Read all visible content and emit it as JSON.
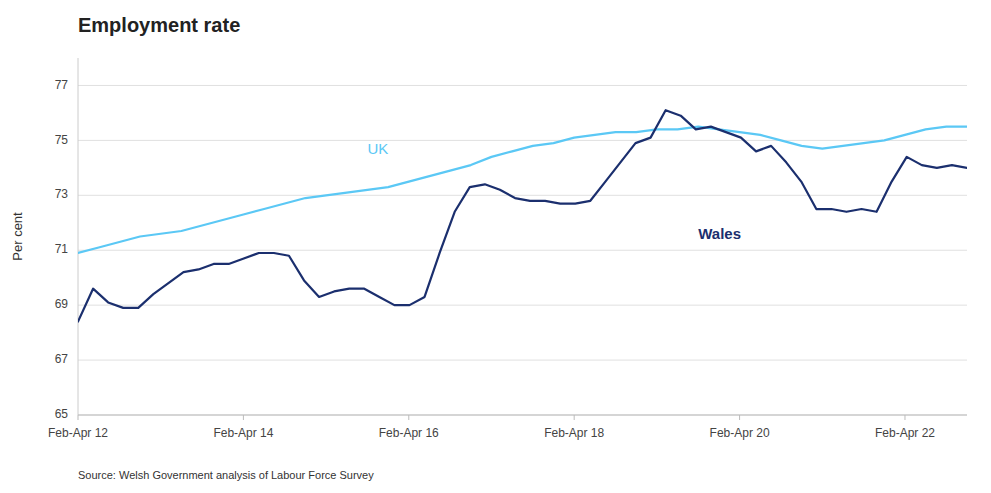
{
  "chart_data": {
    "type": "line",
    "title": "Employment rate",
    "y_label": "Per cent",
    "source": "Source: Welsh Government analysis of Labour Force Survey",
    "xlim": [
      0,
      43
    ],
    "xticks": [
      {
        "value": 0,
        "label": "Feb-Apr 12"
      },
      {
        "value": 8,
        "label": "Feb-Apr 14"
      },
      {
        "value": 16,
        "label": "Feb-Apr 16"
      },
      {
        "value": 24,
        "label": "Feb-Apr 18"
      },
      {
        "value": 32,
        "label": "Feb-Apr 20"
      },
      {
        "value": 40,
        "label": "Feb-Apr 22"
      }
    ],
    "ylim": [
      65,
      78
    ],
    "yticks": [
      65,
      67,
      69,
      71,
      73,
      75,
      77
    ],
    "grid": true,
    "series": [
      {
        "name": "UK",
        "color": "#5bc8f5",
        "x": [
          0,
          1,
          2,
          3,
          4,
          5,
          6,
          7,
          8,
          9,
          10,
          11,
          12,
          13,
          14,
          15,
          16,
          17,
          18,
          19,
          20,
          21,
          22,
          23,
          24,
          25,
          26,
          27,
          28,
          29,
          30,
          31,
          32,
          33,
          34,
          35,
          36,
          37,
          38,
          39,
          40,
          41,
          42,
          43
        ],
        "values": [
          70.9,
          71.1,
          71.3,
          71.5,
          71.6,
          71.7,
          71.9,
          72.1,
          72.3,
          72.5,
          72.7,
          72.9,
          73.0,
          73.1,
          73.2,
          73.3,
          73.5,
          73.7,
          73.9,
          74.1,
          74.4,
          74.6,
          74.8,
          74.9,
          75.1,
          75.2,
          75.3,
          75.3,
          75.4,
          75.4,
          75.5,
          75.4,
          75.3,
          75.2,
          75.0,
          74.8,
          74.7,
          74.8,
          74.9,
          75.0,
          75.2,
          75.4,
          75.5,
          75.5
        ]
      },
      {
        "name": "Wales",
        "color": "#1b2f6e",
        "x": [
          0,
          0.728814,
          1.457627,
          2.186441,
          2.915254,
          3.644068,
          4.372881,
          5.101695,
          5.830508,
          6.559322,
          7.288136,
          8.016949,
          8.745763,
          9.474576,
          10.20339,
          10.932203,
          11.661017,
          12.389831,
          13.118644,
          13.847458,
          14.576271,
          15.305085,
          16.033898,
          16.762712,
          17.491525,
          18.220339,
          18.949153,
          19.677966,
          20.40678,
          21.135593,
          21.864407,
          22.59322,
          23.322034,
          24.050847,
          24.779661,
          25.508475,
          26.237288,
          26.966102,
          27.694915,
          28.423729,
          29.152542,
          29.881356,
          30.610169,
          31.338983,
          32.067797,
          32.79661,
          33.525424,
          34.254237,
          34.983051,
          35.711864,
          36.440678,
          37.169492,
          37.898305,
          38.627119,
          39.355932,
          40.084746,
          40.813559,
          41.542373,
          42.271186,
          43
        ],
        "values": [
          68.4,
          69.6,
          69.1,
          68.9,
          68.9,
          69.4,
          69.8,
          70.2,
          70.3,
          70.5,
          70.5,
          70.7,
          70.9,
          70.9,
          70.8,
          69.9,
          69.3,
          69.5,
          69.6,
          69.6,
          69.3,
          69.0,
          69.0,
          69.3,
          70.9,
          72.4,
          73.3,
          73.4,
          73.2,
          72.9,
          72.8,
          72.8,
          72.7,
          72.7,
          72.8,
          73.5,
          74.2,
          74.9,
          75.1,
          76.1,
          75.9,
          75.4,
          75.5,
          75.3,
          75.1,
          74.6,
          74.8,
          74.2,
          73.5,
          72.5,
          72.5,
          72.4,
          72.5,
          72.4,
          73.5,
          74.4,
          74.1,
          74.0,
          74.1,
          74.0
        ]
      }
    ],
    "annotations": [
      {
        "text": "UK",
        "x": 14,
        "y": 74.5,
        "color": "#5bc8f5"
      },
      {
        "text": "Wales",
        "x": 30,
        "y": 71.8,
        "color": "#1b2f6e"
      }
    ]
  }
}
